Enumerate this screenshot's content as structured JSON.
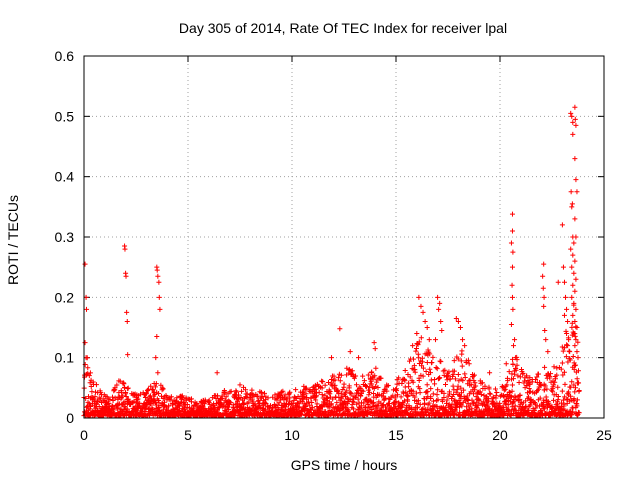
{
  "chart_data": {
    "type": "scatter",
    "title": "Day 305 of 2014, Rate Of TEC Index for receiver lpal",
    "xlabel": "GPS time / hours",
    "ylabel": "ROTI / TECUs",
    "xlim": [
      0,
      25
    ],
    "ylim": [
      0,
      0.6
    ],
    "xticks": [
      "0",
      "5",
      "10",
      "15",
      "20",
      "25"
    ],
    "yticks": [
      "0",
      "0.1",
      "0.2",
      "0.3",
      "0.4",
      "0.5",
      "0.6"
    ],
    "xtick_values": [
      0,
      5,
      10,
      15,
      20,
      25
    ],
    "ytick_values": [
      0,
      0.1,
      0.2,
      0.3,
      0.4,
      0.5,
      0.6
    ],
    "grid": true,
    "marker": "+",
    "series": [
      {
        "name": "ROTI",
        "color": "#ff0000",
        "envelope": [
          [
            0.0,
            0.06
          ],
          [
            0.1,
            0.12
          ],
          [
            0.2,
            0.08
          ],
          [
            0.5,
            0.06
          ],
          [
            0.8,
            0.04
          ],
          [
            1.2,
            0.03
          ],
          [
            1.8,
            0.07
          ],
          [
            2.0,
            0.05
          ],
          [
            2.5,
            0.035
          ],
          [
            3.0,
            0.04
          ],
          [
            3.3,
            0.055
          ],
          [
            3.6,
            0.06
          ],
          [
            4.0,
            0.03
          ],
          [
            4.5,
            0.035
          ],
          [
            5.0,
            0.03
          ],
          [
            5.5,
            0.025
          ],
          [
            6.0,
            0.028
          ],
          [
            6.5,
            0.04
          ],
          [
            7.0,
            0.045
          ],
          [
            7.5,
            0.05
          ],
          [
            8.0,
            0.045
          ],
          [
            8.5,
            0.04
          ],
          [
            9.0,
            0.035
          ],
          [
            9.5,
            0.045
          ],
          [
            10.0,
            0.04
          ],
          [
            10.5,
            0.05
          ],
          [
            11.0,
            0.05
          ],
          [
            11.5,
            0.06
          ],
          [
            12.0,
            0.07
          ],
          [
            12.5,
            0.08
          ],
          [
            13.0,
            0.075
          ],
          [
            13.5,
            0.065
          ],
          [
            14.0,
            0.08
          ],
          [
            14.5,
            0.05
          ],
          [
            15.0,
            0.06
          ],
          [
            15.5,
            0.08
          ],
          [
            16.0,
            0.12
          ],
          [
            16.3,
            0.14
          ],
          [
            16.7,
            0.1
          ],
          [
            17.0,
            0.1
          ],
          [
            17.5,
            0.07
          ],
          [
            18.0,
            0.11
          ],
          [
            18.3,
            0.12
          ],
          [
            18.7,
            0.07
          ],
          [
            19.0,
            0.06
          ],
          [
            19.5,
            0.05
          ],
          [
            20.0,
            0.04
          ],
          [
            20.3,
            0.07
          ],
          [
            20.7,
            0.11
          ],
          [
            21.0,
            0.08
          ],
          [
            21.5,
            0.06
          ],
          [
            22.0,
            0.09
          ],
          [
            22.3,
            0.07
          ],
          [
            22.8,
            0.09
          ],
          [
            23.2,
            0.15
          ],
          [
            23.5,
            0.2
          ],
          [
            23.8,
            0.12
          ]
        ],
        "highlights": [
          [
            0.05,
            0.255
          ],
          [
            0.1,
            0.2
          ],
          [
            0.12,
            0.18
          ],
          [
            0.05,
            0.125
          ],
          [
            0.1,
            0.1
          ],
          [
            1.95,
            0.285
          ],
          [
            1.97,
            0.28
          ],
          [
            2.0,
            0.24
          ],
          [
            2.02,
            0.235
          ],
          [
            2.05,
            0.175
          ],
          [
            2.08,
            0.16
          ],
          [
            2.1,
            0.105
          ],
          [
            3.5,
            0.25
          ],
          [
            3.52,
            0.245
          ],
          [
            3.55,
            0.235
          ],
          [
            3.6,
            0.225
          ],
          [
            3.62,
            0.2
          ],
          [
            3.65,
            0.18
          ],
          [
            3.5,
            0.135
          ],
          [
            3.45,
            0.1
          ],
          [
            3.55,
            0.075
          ],
          [
            6.4,
            0.075
          ],
          [
            7.5,
            0.055
          ],
          [
            12.3,
            0.148
          ],
          [
            11.9,
            0.1
          ],
          [
            12.8,
            0.11
          ],
          [
            13.2,
            0.1
          ],
          [
            13.95,
            0.125
          ],
          [
            14.0,
            0.115
          ],
          [
            16.1,
            0.2
          ],
          [
            16.2,
            0.185
          ],
          [
            16.3,
            0.175
          ],
          [
            16.4,
            0.16
          ],
          [
            16.5,
            0.15
          ],
          [
            16.0,
            0.14
          ],
          [
            16.6,
            0.13
          ],
          [
            15.8,
            0.12
          ],
          [
            17.0,
            0.2
          ],
          [
            17.1,
            0.19
          ],
          [
            17.05,
            0.18
          ],
          [
            17.15,
            0.16
          ],
          [
            17.2,
            0.145
          ],
          [
            16.9,
            0.13
          ],
          [
            17.9,
            0.165
          ],
          [
            18.0,
            0.16
          ],
          [
            18.1,
            0.15
          ],
          [
            18.2,
            0.13
          ],
          [
            18.3,
            0.12
          ],
          [
            17.8,
            0.095
          ],
          [
            19.5,
            0.075
          ],
          [
            20.3,
            0.09
          ],
          [
            20.6,
            0.338
          ],
          [
            20.6,
            0.31
          ],
          [
            20.55,
            0.29
          ],
          [
            20.62,
            0.275
          ],
          [
            20.6,
            0.25
          ],
          [
            20.58,
            0.22
          ],
          [
            20.6,
            0.2
          ],
          [
            20.62,
            0.18
          ],
          [
            20.55,
            0.155
          ],
          [
            20.7,
            0.13
          ],
          [
            20.65,
            0.12
          ],
          [
            20.75,
            0.1
          ],
          [
            22.1,
            0.255
          ],
          [
            22.05,
            0.235
          ],
          [
            22.08,
            0.215
          ],
          [
            22.12,
            0.2
          ],
          [
            22.1,
            0.185
          ],
          [
            22.15,
            0.145
          ],
          [
            22.2,
            0.13
          ],
          [
            22.3,
            0.11
          ],
          [
            22.8,
            0.225
          ],
          [
            23.0,
            0.32
          ],
          [
            23.05,
            0.25
          ],
          [
            23.1,
            0.225
          ],
          [
            23.15,
            0.2
          ],
          [
            23.2,
            0.18
          ],
          [
            23.1,
            0.17
          ],
          [
            23.25,
            0.16
          ],
          [
            23.2,
            0.14
          ],
          [
            23.3,
            0.13
          ],
          [
            23.25,
            0.12
          ],
          [
            23.35,
            0.11
          ],
          [
            23.4,
            0.505
          ],
          [
            23.45,
            0.5
          ],
          [
            23.5,
            0.49
          ],
          [
            23.5,
            0.47
          ],
          [
            23.42,
            0.375
          ],
          [
            23.48,
            0.355
          ],
          [
            23.45,
            0.35
          ],
          [
            23.5,
            0.3
          ],
          [
            23.55,
            0.29
          ],
          [
            23.6,
            0.515
          ],
          [
            23.62,
            0.495
          ],
          [
            23.65,
            0.485
          ],
          [
            23.6,
            0.43
          ],
          [
            23.65,
            0.395
          ],
          [
            23.7,
            0.375
          ],
          [
            23.6,
            0.33
          ],
          [
            23.65,
            0.3
          ],
          [
            23.4,
            0.28
          ],
          [
            23.5,
            0.27
          ],
          [
            23.6,
            0.26
          ],
          [
            23.45,
            0.25
          ],
          [
            23.55,
            0.24
          ],
          [
            23.65,
            0.23
          ],
          [
            23.5,
            0.22
          ],
          [
            23.6,
            0.21
          ],
          [
            23.45,
            0.2
          ],
          [
            23.55,
            0.19
          ],
          [
            23.65,
            0.18
          ],
          [
            23.5,
            0.17
          ],
          [
            23.6,
            0.16
          ],
          [
            23.7,
            0.15
          ],
          [
            23.55,
            0.14
          ],
          [
            23.65,
            0.13
          ],
          [
            23.6,
            0.12
          ],
          [
            23.7,
            0.11
          ],
          [
            23.75,
            0.1
          ]
        ]
      }
    ]
  }
}
